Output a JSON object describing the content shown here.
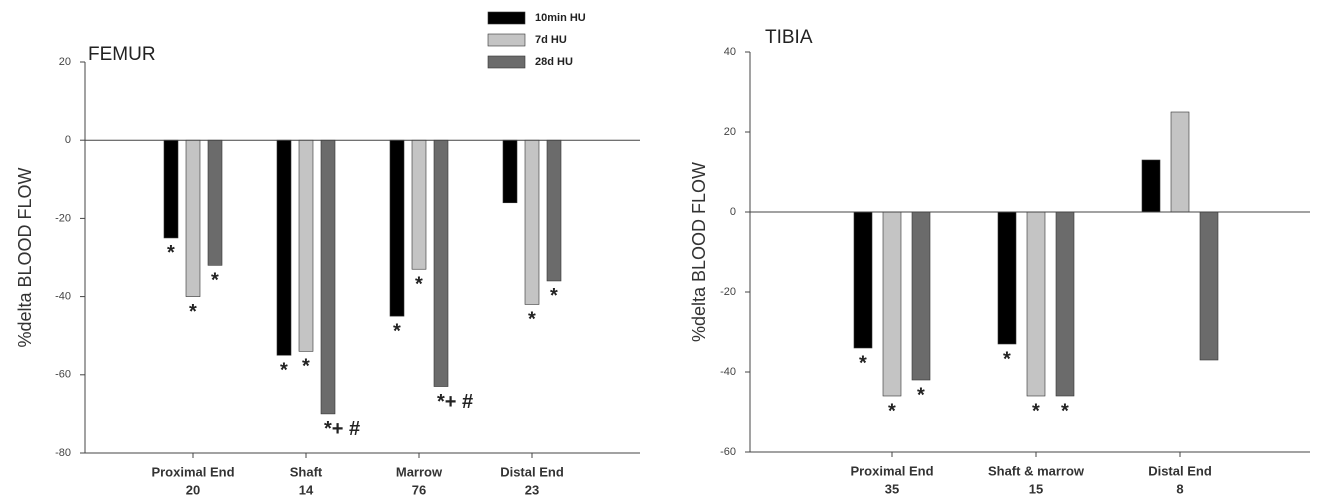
{
  "chart_data": [
    {
      "type": "bar",
      "title": "FEMUR",
      "y_label": "%delta BLOOD FLOW",
      "categories": [
        "Proximal End",
        "Shaft",
        "Marrow",
        "Distal End"
      ],
      "sample_sizes": [
        20,
        14,
        76,
        23
      ],
      "series": [
        {
          "name": "10min HU",
          "color": "#000000",
          "values": [
            -25,
            -55,
            -45,
            -16
          ],
          "markers": [
            "*",
            "*",
            "*",
            null
          ]
        },
        {
          "name": "7d HU",
          "color": "#c4c4c4",
          "values": [
            -40,
            -54,
            -33,
            -42
          ],
          "markers": [
            "*",
            "*",
            "*",
            "*"
          ]
        },
        {
          "name": "28d HU",
          "color": "#6b6b6b",
          "values": [
            -32,
            -70,
            -63,
            -36
          ],
          "markers": [
            "*",
            "*+ #",
            "*+ #",
            "*"
          ]
        }
      ],
      "ylim": [
        -80,
        20
      ],
      "yticks": [
        -80,
        -60,
        -40,
        -20,
        0,
        20
      ],
      "legend": "top-right"
    },
    {
      "type": "bar",
      "title": "TIBIA",
      "y_label": "%delta BLOOD FLOW",
      "categories": [
        "Proximal End",
        "Shaft & marrow",
        "Distal End"
      ],
      "sample_sizes": [
        35,
        15,
        8
      ],
      "series": [
        {
          "color": "#000000",
          "values": [
            -34,
            -33,
            13
          ],
          "markers": [
            "*",
            "*",
            null
          ]
        },
        {
          "color": "#c4c4c4",
          "values": [
            -46,
            -46,
            25
          ],
          "markers": [
            "*",
            "*",
            null
          ]
        },
        {
          "color": "#6b6b6b",
          "values": [
            -42,
            -46,
            -37
          ],
          "markers": [
            "*",
            "*",
            null
          ]
        }
      ],
      "ylim": [
        -60,
        40
      ],
      "yticks": [
        -60,
        -40,
        -20,
        0,
        20,
        40
      ]
    }
  ]
}
